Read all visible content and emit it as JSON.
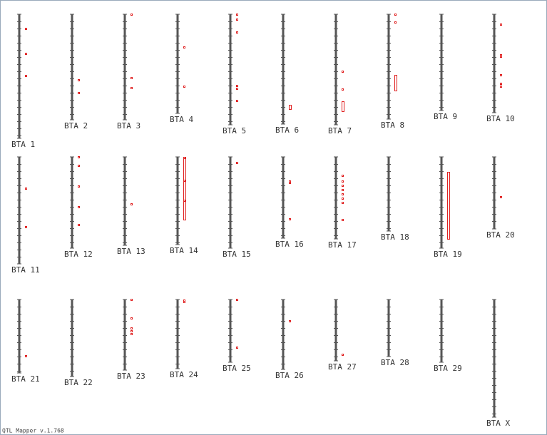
{
  "chromosomes": [
    {
      "label": "BTA 1",
      "length": 174,
      "qtl": [
        21,
        56,
        87
      ],
      "intervals": []
    },
    {
      "label": "BTA 2",
      "length": 148,
      "qtl": [
        93,
        111
      ],
      "intervals": []
    },
    {
      "label": "BTA 3",
      "length": 148,
      "qtl": [
        1,
        90,
        104
      ],
      "intervals": []
    },
    {
      "label": "BTA 4",
      "length": 139,
      "qtl": [
        47,
        102
      ],
      "intervals": []
    },
    {
      "label": "BTA 5",
      "length": 155,
      "qtl": [
        1,
        8,
        26,
        101,
        105,
        122
      ],
      "intervals": []
    },
    {
      "label": "BTA 6",
      "length": 154,
      "qtl": [],
      "intervals": [
        {
          "start": 127,
          "end": 133
        }
      ]
    },
    {
      "label": "BTA 7",
      "length": 155,
      "qtl": [
        81,
        106
      ],
      "intervals": [
        {
          "start": 122,
          "end": 136
        }
      ]
    },
    {
      "label": "BTA 8",
      "length": 147,
      "qtl": [
        1,
        12
      ],
      "intervals": [
        {
          "start": 85,
          "end": 107
        }
      ]
    },
    {
      "label": "BTA 9",
      "length": 135,
      "qtl": [],
      "intervals": []
    },
    {
      "label": "BTA 10",
      "length": 138,
      "qtl": [
        15,
        58,
        60,
        86,
        98,
        102
      ],
      "intervals": []
    },
    {
      "label": "BTA 11",
      "length": 150,
      "qtl": [
        45,
        99
      ],
      "intervals": []
    },
    {
      "label": "BTA 12",
      "length": 128,
      "qtl": [
        1,
        13,
        42,
        71,
        96
      ],
      "intervals": []
    },
    {
      "label": "BTA 13",
      "length": 124,
      "qtl": [
        67
      ],
      "intervals": []
    },
    {
      "label": "BTA 14",
      "length": 123,
      "qtl": [
        2,
        34,
        62
      ],
      "intervals": [
        {
          "start": 0,
          "end": 88
        }
      ]
    },
    {
      "label": "BTA 15",
      "length": 128,
      "qtl": [
        9
      ],
      "intervals": []
    },
    {
      "label": "BTA 16",
      "length": 114,
      "qtl": [
        35,
        37,
        88
      ],
      "intervals": []
    },
    {
      "label": "BTA 17",
      "length": 115,
      "qtl": [
        27,
        35,
        41,
        47,
        53,
        59,
        65,
        89
      ],
      "intervals": []
    },
    {
      "label": "BTA 18",
      "length": 104,
      "qtl": [],
      "intervals": []
    },
    {
      "label": "BTA 19",
      "length": 128,
      "qtl": [],
      "intervals": [
        {
          "start": 21,
          "end": 115
        }
      ]
    },
    {
      "label": "BTA 20",
      "length": 101,
      "qtl": [
        57
      ],
      "intervals": []
    },
    {
      "label": "BTA 21",
      "length": 103,
      "qtl": [
        80
      ],
      "intervals": []
    },
    {
      "label": "BTA 22",
      "length": 108,
      "qtl": [],
      "intervals": []
    },
    {
      "label": "BTA 23",
      "length": 99,
      "qtl": [
        1,
        27,
        41,
        45,
        49
      ],
      "intervals": []
    },
    {
      "label": "BTA 24",
      "length": 97,
      "qtl": [
        2,
        4
      ],
      "intervals": []
    },
    {
      "label": "BTA 25",
      "length": 88,
      "qtl": [
        1,
        68
      ],
      "intervals": []
    },
    {
      "label": "BTA 26",
      "length": 98,
      "qtl": [
        31
      ],
      "intervals": []
    },
    {
      "label": "BTA 27",
      "length": 86,
      "qtl": [
        78
      ],
      "intervals": []
    },
    {
      "label": "BTA 28",
      "length": 80,
      "qtl": [],
      "intervals": []
    },
    {
      "label": "BTA 29",
      "length": 88,
      "qtl": [],
      "intervals": []
    },
    {
      "label": "BTA X",
      "length": 165,
      "qtl": [],
      "intervals": []
    }
  ],
  "footer": "QTL Mapper v.1.768"
}
